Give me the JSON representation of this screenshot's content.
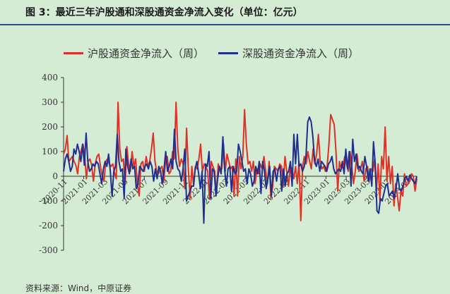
{
  "page": {
    "title": "图 3：最近三年沪股通和深股通资金净流入变化（单位：亿元）",
    "source": "资料来源：Wind，中原证券"
  },
  "colors": {
    "sh": "#e03127",
    "sz": "#1f2f8f",
    "background": "#d5ecd4",
    "title_rule": "#2b4f8c"
  },
  "chart_data": {
    "type": "line",
    "title": "",
    "xlabel": "",
    "ylabel": "",
    "ylim": [
      -300,
      400
    ],
    "yticks": [
      400,
      300,
      200,
      100,
      0,
      -100,
      -200,
      -300
    ],
    "grid": false,
    "legend_position": "top",
    "xtick_labels": [
      "2020-11",
      "2021-01",
      "2021-03",
      "2021-05",
      "2021-07",
      "2021-09",
      "2021-11",
      "2022-01",
      "2022-03",
      "2022-05",
      "2022-07",
      "2022-09",
      "2022-11",
      "2023-01",
      "2023-03",
      "2023-05",
      "2023-07",
      "2023-09"
    ],
    "series": [
      {
        "name": "沪股通资金净流入（周）",
        "color": "#e03127",
        "values": [
          90,
          110,
          165,
          60,
          70,
          80,
          60,
          45,
          10,
          80,
          105,
          130,
          85,
          -10,
          60,
          70,
          45,
          -20,
          50,
          80,
          90,
          40,
          0,
          -20,
          60,
          70,
          50,
          40,
          50,
          15,
          -10,
          300,
          110,
          60,
          70,
          -30,
          120,
          50,
          20,
          100,
          40,
          70,
          -30,
          -80,
          50,
          60,
          20,
          80,
          40,
          60,
          110,
          175,
          60,
          20,
          10,
          30,
          40,
          -20,
          60,
          80,
          10,
          20,
          100,
          70,
          300,
          110,
          40,
          70,
          50,
          -50,
          195,
          30,
          -90,
          40,
          -40,
          40,
          30,
          70,
          130,
          20,
          50,
          40,
          20,
          -90,
          60,
          40,
          20,
          -70,
          50,
          30,
          30,
          130,
          20,
          90,
          60,
          30,
          40,
          -80,
          70,
          -80,
          80,
          30,
          80,
          270,
          130,
          50,
          60,
          20,
          60,
          -30,
          30,
          10,
          50,
          30,
          80,
          20,
          -30,
          60,
          -90,
          -40,
          40,
          30,
          20,
          50,
          40,
          -40,
          80,
          20,
          -40,
          40,
          30,
          -10,
          40,
          -30,
          60,
          -180,
          40,
          80,
          50,
          100,
          60,
          30,
          110,
          50,
          90,
          170,
          60,
          30,
          40,
          20,
          40,
          130,
          250,
          230,
          210,
          100,
          -60,
          60,
          30,
          40,
          80,
          50,
          20,
          100,
          40,
          -30,
          20,
          90,
          20,
          30,
          60,
          -20,
          30,
          40,
          -20,
          30,
          20,
          70,
          -60,
          50,
          -100,
          80,
          30,
          200,
          -20,
          80,
          -30,
          40,
          -120,
          -30,
          -80,
          -140,
          -60,
          -80,
          10,
          -40,
          -30,
          -20,
          10,
          0,
          -60,
          -10
        ]
      },
      {
        "name": "深股通资金净流入（周）",
        "color": "#1f2f8f",
        "values": [
          20,
          70,
          90,
          60,
          20,
          40,
          110,
          90,
          130,
          100,
          60,
          130,
          45,
          175,
          60,
          20,
          30,
          50,
          40,
          60,
          50,
          10,
          -30,
          30,
          60,
          40,
          90,
          20,
          -80,
          20,
          40,
          170,
          60,
          20,
          30,
          -90,
          110,
          40,
          10,
          70,
          30,
          40,
          -50,
          -30,
          40,
          30,
          20,
          40,
          50,
          30,
          60,
          40,
          -20,
          30,
          -10,
          40,
          20,
          -30,
          30,
          100,
          20,
          40,
          70,
          30,
          190,
          60,
          30,
          20,
          -20,
          30,
          110,
          -100,
          -80,
          -60,
          -40,
          -40,
          30,
          60,
          10,
          -50,
          20,
          -190,
          50,
          40,
          100,
          -90,
          30,
          20,
          -80,
          -10,
          40,
          10,
          160,
          30,
          -40,
          30,
          40,
          -60,
          40,
          10,
          20,
          130,
          100,
          60,
          20,
          30,
          -30,
          30,
          10,
          -40,
          -20,
          40,
          10,
          60,
          -70,
          60,
          20,
          -50,
          -10,
          40,
          -80,
          20,
          30,
          -20,
          30,
          40,
          -60,
          30,
          -40,
          10,
          20,
          60,
          -40,
          170,
          50,
          170,
          40,
          50,
          20,
          40,
          80,
          220,
          240,
          220,
          160,
          60,
          40,
          70,
          20,
          60,
          50,
          40,
          20,
          50,
          60,
          80,
          30,
          10,
          20,
          30,
          20,
          60,
          10,
          110,
          30,
          100,
          -40,
          150,
          60,
          90,
          30,
          40,
          20,
          10,
          80,
          40,
          -20,
          30,
          -40,
          140,
          50,
          -140,
          -150,
          -90,
          -100,
          -70,
          -40,
          -30,
          -80,
          -70,
          -60,
          -90,
          -50,
          10,
          -50,
          -60,
          -40,
          -10,
          0,
          -20,
          5,
          -10,
          -20,
          -30,
          0
        ]
      }
    ]
  }
}
